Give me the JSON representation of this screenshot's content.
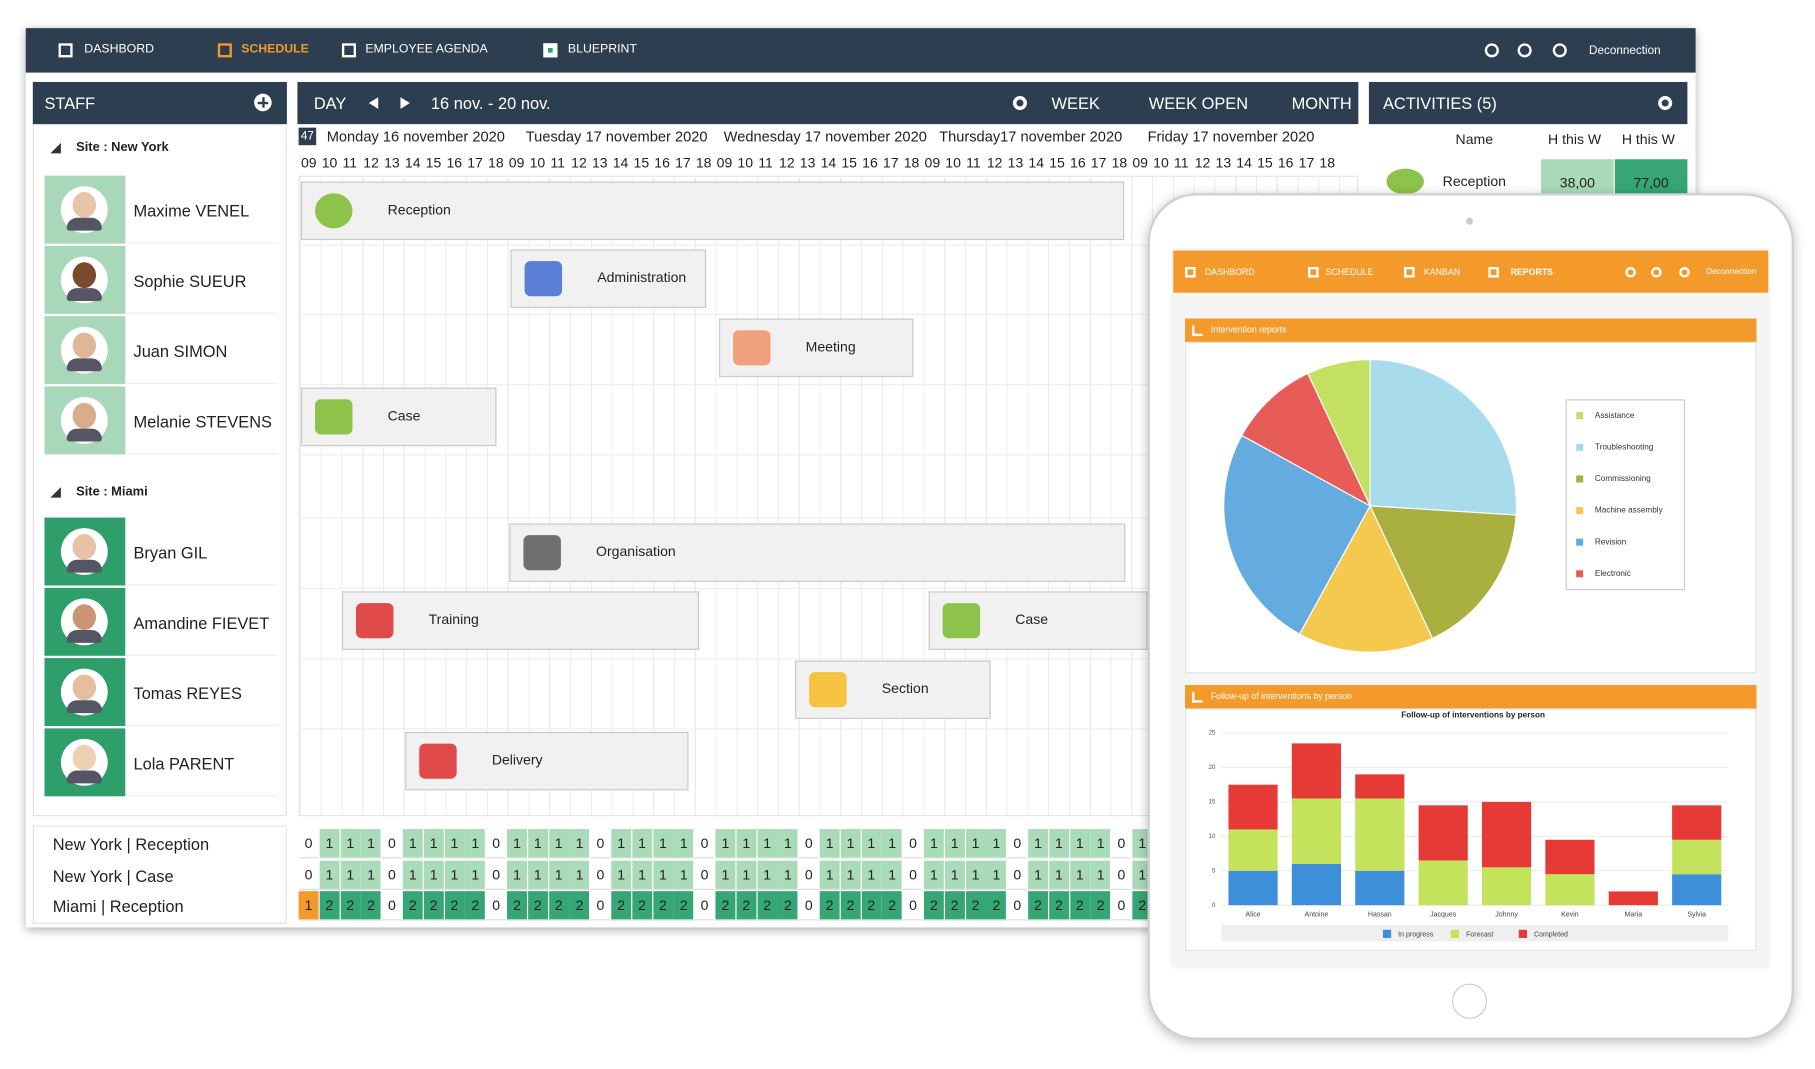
{
  "nav": {
    "items": [
      "DASHBORD",
      "SCHEDULE",
      "EMPLOYEE AGENDA",
      "BLUEPRINT"
    ],
    "logout": "Deconnection"
  },
  "staff": {
    "title": "STAFF",
    "sites": [
      {
        "name": "Site : New York",
        "people": [
          "Maxime VENEL",
          "Sophie SUEUR",
          "Juan SIMON",
          "Melanie STEVENS"
        ]
      },
      {
        "name": "Site : Miami",
        "people": [
          "Bryan GIL",
          "Amandine FIEVET",
          "Tomas REYES",
          "Lola PARENT"
        ]
      }
    ]
  },
  "schedule": {
    "view": "DAY",
    "range": "16 nov. - 20 nov.",
    "views": [
      "WEEK",
      "WEEK OPEN",
      "MONTH"
    ],
    "week": 47,
    "days": [
      "Monday 16 november 2020",
      "Tuesday 17 november 2020",
      "Wednesday 17 november 2020",
      "Thursday17 november 2020",
      "Friday 17 november 2020"
    ],
    "hours": [
      "09",
      "10",
      "11",
      "12",
      "13",
      "14",
      "15",
      "16",
      "17",
      "18"
    ],
    "tasks": [
      "Reception",
      "Administration",
      "Meeting",
      "Case",
      "Organisation",
      "Training",
      "Case",
      "Section",
      "Delivery"
    ]
  },
  "coverage": {
    "rows": [
      {
        "label": "New York | Reception",
        "values": [
          0,
          1,
          1,
          1,
          0,
          1,
          1,
          1,
          1,
          0,
          1,
          1,
          1,
          1,
          0,
          1,
          1,
          1,
          1,
          0,
          1,
          1,
          1,
          1,
          0,
          1,
          1,
          1,
          1,
          0,
          1,
          1,
          1,
          1,
          0,
          1,
          1,
          1,
          1,
          0,
          1
        ]
      },
      {
        "label": "New York | Case",
        "values": [
          0,
          1,
          1,
          1,
          0,
          1,
          1,
          1,
          1,
          0,
          1,
          1,
          1,
          1,
          0,
          1,
          1,
          1,
          1,
          0,
          1,
          1,
          1,
          1,
          0,
          1,
          1,
          1,
          1,
          0,
          1,
          1,
          1,
          1,
          0,
          1,
          1,
          1,
          1,
          0,
          1
        ]
      },
      {
        "label": "Miami | Reception",
        "values": [
          1,
          2,
          2,
          2,
          0,
          2,
          2,
          2,
          2,
          0,
          2,
          2,
          2,
          2,
          0,
          2,
          2,
          2,
          2,
          0,
          2,
          2,
          2,
          2,
          0,
          2,
          2,
          2,
          2,
          0,
          2,
          2,
          2,
          2,
          0,
          2,
          2,
          2,
          2,
          0,
          2
        ]
      }
    ]
  },
  "activities": {
    "title": "ACTIVITIES (5)",
    "columns": [
      "Name",
      "H this W",
      "H this W"
    ],
    "rows": [
      [
        "Reception",
        "38,00",
        "77,00"
      ]
    ]
  },
  "tablet": {
    "nav": {
      "items": [
        "DASHBORD",
        "SCHEDULE",
        "KANBAN",
        "REPORTS"
      ],
      "logout": "Deconnection"
    },
    "panels": [
      "Intervention reports",
      "Follow-up of interventions by person"
    ]
  },
  "chart_data": [
    {
      "type": "pie",
      "categories": [
        "Assistance",
        "Troubleshooting",
        "Commissioning",
        "Machine assembly",
        "Revision",
        "Electronic"
      ],
      "values": [
        7,
        26,
        17,
        15,
        25,
        10
      ],
      "colors": [
        "#c4e063",
        "#a8dcec",
        "#a9b03f",
        "#f5c94e",
        "#64ace0",
        "#e85c57"
      ]
    },
    {
      "type": "bar",
      "stacked": true,
      "title": "Follow-up of interventions by person",
      "categories": [
        "Alice",
        "Antoine",
        "Hassan",
        "Jacques",
        "Johnny",
        "Kevin",
        "Maria",
        "Sylvia"
      ],
      "series": [
        {
          "name": "In progress",
          "color": "#3d8fd9",
          "values": [
            5,
            6,
            5,
            0,
            0,
            0,
            0,
            4.5
          ]
        },
        {
          "name": "Forecast",
          "color": "#c4e35c",
          "values": [
            6,
            9.5,
            10.5,
            6.5,
            5.5,
            4.5,
            0,
            5
          ]
        },
        {
          "name": "Completed",
          "color": "#e53a35",
          "values": [
            6.5,
            8,
            3.5,
            8,
            9.5,
            5,
            2,
            5
          ]
        }
      ],
      "ylim": [
        0,
        25
      ],
      "yticks": [
        0,
        5,
        10,
        15,
        20,
        25
      ],
      "grid": true
    }
  ]
}
